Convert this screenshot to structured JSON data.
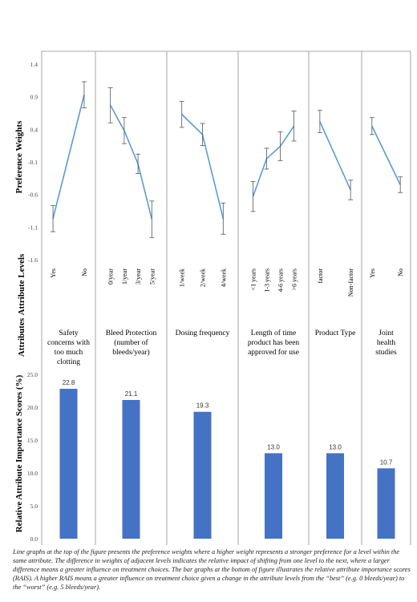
{
  "chart_data": [
    {
      "type": "line",
      "ylabel": "Preference Weights",
      "row_label_levels": "Attribute Levels",
      "row_label_attributes": "Attributes",
      "yticks": [
        "1.4",
        "0.9",
        "0.4",
        "-0.1",
        "-0.6",
        "-1.1",
        "-1.6"
      ],
      "ylim": [
        -1.6,
        1.4
      ],
      "grid": false,
      "attributes": [
        {
          "name": "Safety concerns with too much clotting",
          "levels": [
            "Yes",
            "No"
          ],
          "values": [
            -0.97,
            0.93
          ],
          "err": [
            0.2,
            0.2
          ]
        },
        {
          "name": "Bleed Protection (number of bleeds/year)",
          "levels": [
            "0/year",
            "1/year",
            "3/year",
            "5/year"
          ],
          "values": [
            0.77,
            0.38,
            -0.13,
            -0.98
          ],
          "err": [
            0.27,
            0.2,
            0.15,
            0.28
          ]
        },
        {
          "name": "Dosing frequency",
          "levels": [
            "1/week",
            "2/week",
            "4/week"
          ],
          "values": [
            0.63,
            0.32,
            -0.97
          ],
          "err": [
            0.2,
            0.17,
            0.24
          ]
        },
        {
          "name": "Length of time product has been approved for use",
          "levels": [
            "<1 years",
            "1-3 years",
            "4-6 years",
            ">6 years"
          ],
          "values": [
            -0.63,
            -0.05,
            0.14,
            0.45
          ],
          "err": [
            0.23,
            0.16,
            0.22,
            0.23
          ]
        },
        {
          "name": "Product Type",
          "levels": [
            "factor",
            "Non-factor"
          ],
          "values": [
            0.52,
            -0.53
          ],
          "err": [
            0.17,
            0.15
          ]
        },
        {
          "name": "Joint health studies",
          "levels": [
            "Yes",
            "No"
          ],
          "values": [
            0.45,
            -0.45
          ],
          "err": [
            0.13,
            0.12
          ]
        }
      ]
    },
    {
      "type": "bar",
      "ylabel": "Relative Attribute  Importance  Scores (%)",
      "yticks": [
        "25.0",
        "20.0",
        "15.0",
        "10.0",
        "5.0",
        "0.0"
      ],
      "ylim": [
        0,
        25
      ],
      "values": [
        22.8,
        21.1,
        19.3,
        13.0,
        13.0,
        10.7
      ],
      "labels": [
        "22.8",
        "21.1",
        "19.3",
        "13.0",
        "13.0",
        "10.7"
      ]
    }
  ],
  "colors": {
    "line": "#5b9bd5",
    "bar": "#4472c4",
    "divider": "#a6a6a6",
    "errorbar": "#555555"
  },
  "caption": "Line graphs at the top of the figure presents the preference weights where a higher weight represents a stronger preference for a level within the same attribute. The difference in weights of adjacent levels indicates the relative impact of shifting from one level to the next, where a larger difference means a greater influence on treatment choices. The bar graphs at the bottom of figure illustrates the relative attribute importance scores (RAIS). A higher RAIS means a greater influence on treatment choice given a change in the attribute levels from the “best” (e.g. 0 bleeds/year) to the “worst” (e.g. 5 bleeds/year)."
}
